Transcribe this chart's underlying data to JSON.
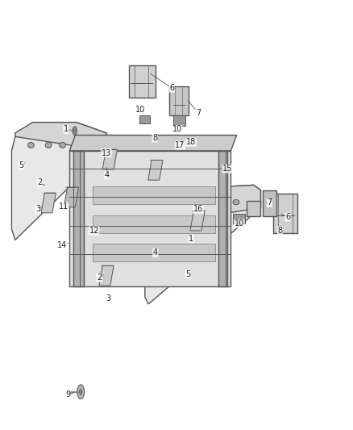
{
  "bg_color": "#ffffff",
  "fig_width": 4.38,
  "fig_height": 5.33,
  "dpi": 100,
  "gray_dark": "#555555",
  "gray_med": "#888888",
  "gray_light": "#bbbbbb",
  "rail_face": "#e8e8e8",
  "rail_top": "#d5d5d5",
  "frame_body": "#e0e0e0",
  "frame_top": "#cccccc",
  "inner_rail": "#b0b0b0",
  "slot_color": "#c8c8c8",
  "bracket_color": "#cccccc",
  "box_color": "#d0d0d0",
  "box7_color": "#c8c8c8",
  "block_color": "#999999",
  "bolt_color": "#bbbbbb",
  "label_fontsize": 7,
  "label_color": "#222222",
  "leader_color": "#444444",
  "leader_lw": 0.55
}
